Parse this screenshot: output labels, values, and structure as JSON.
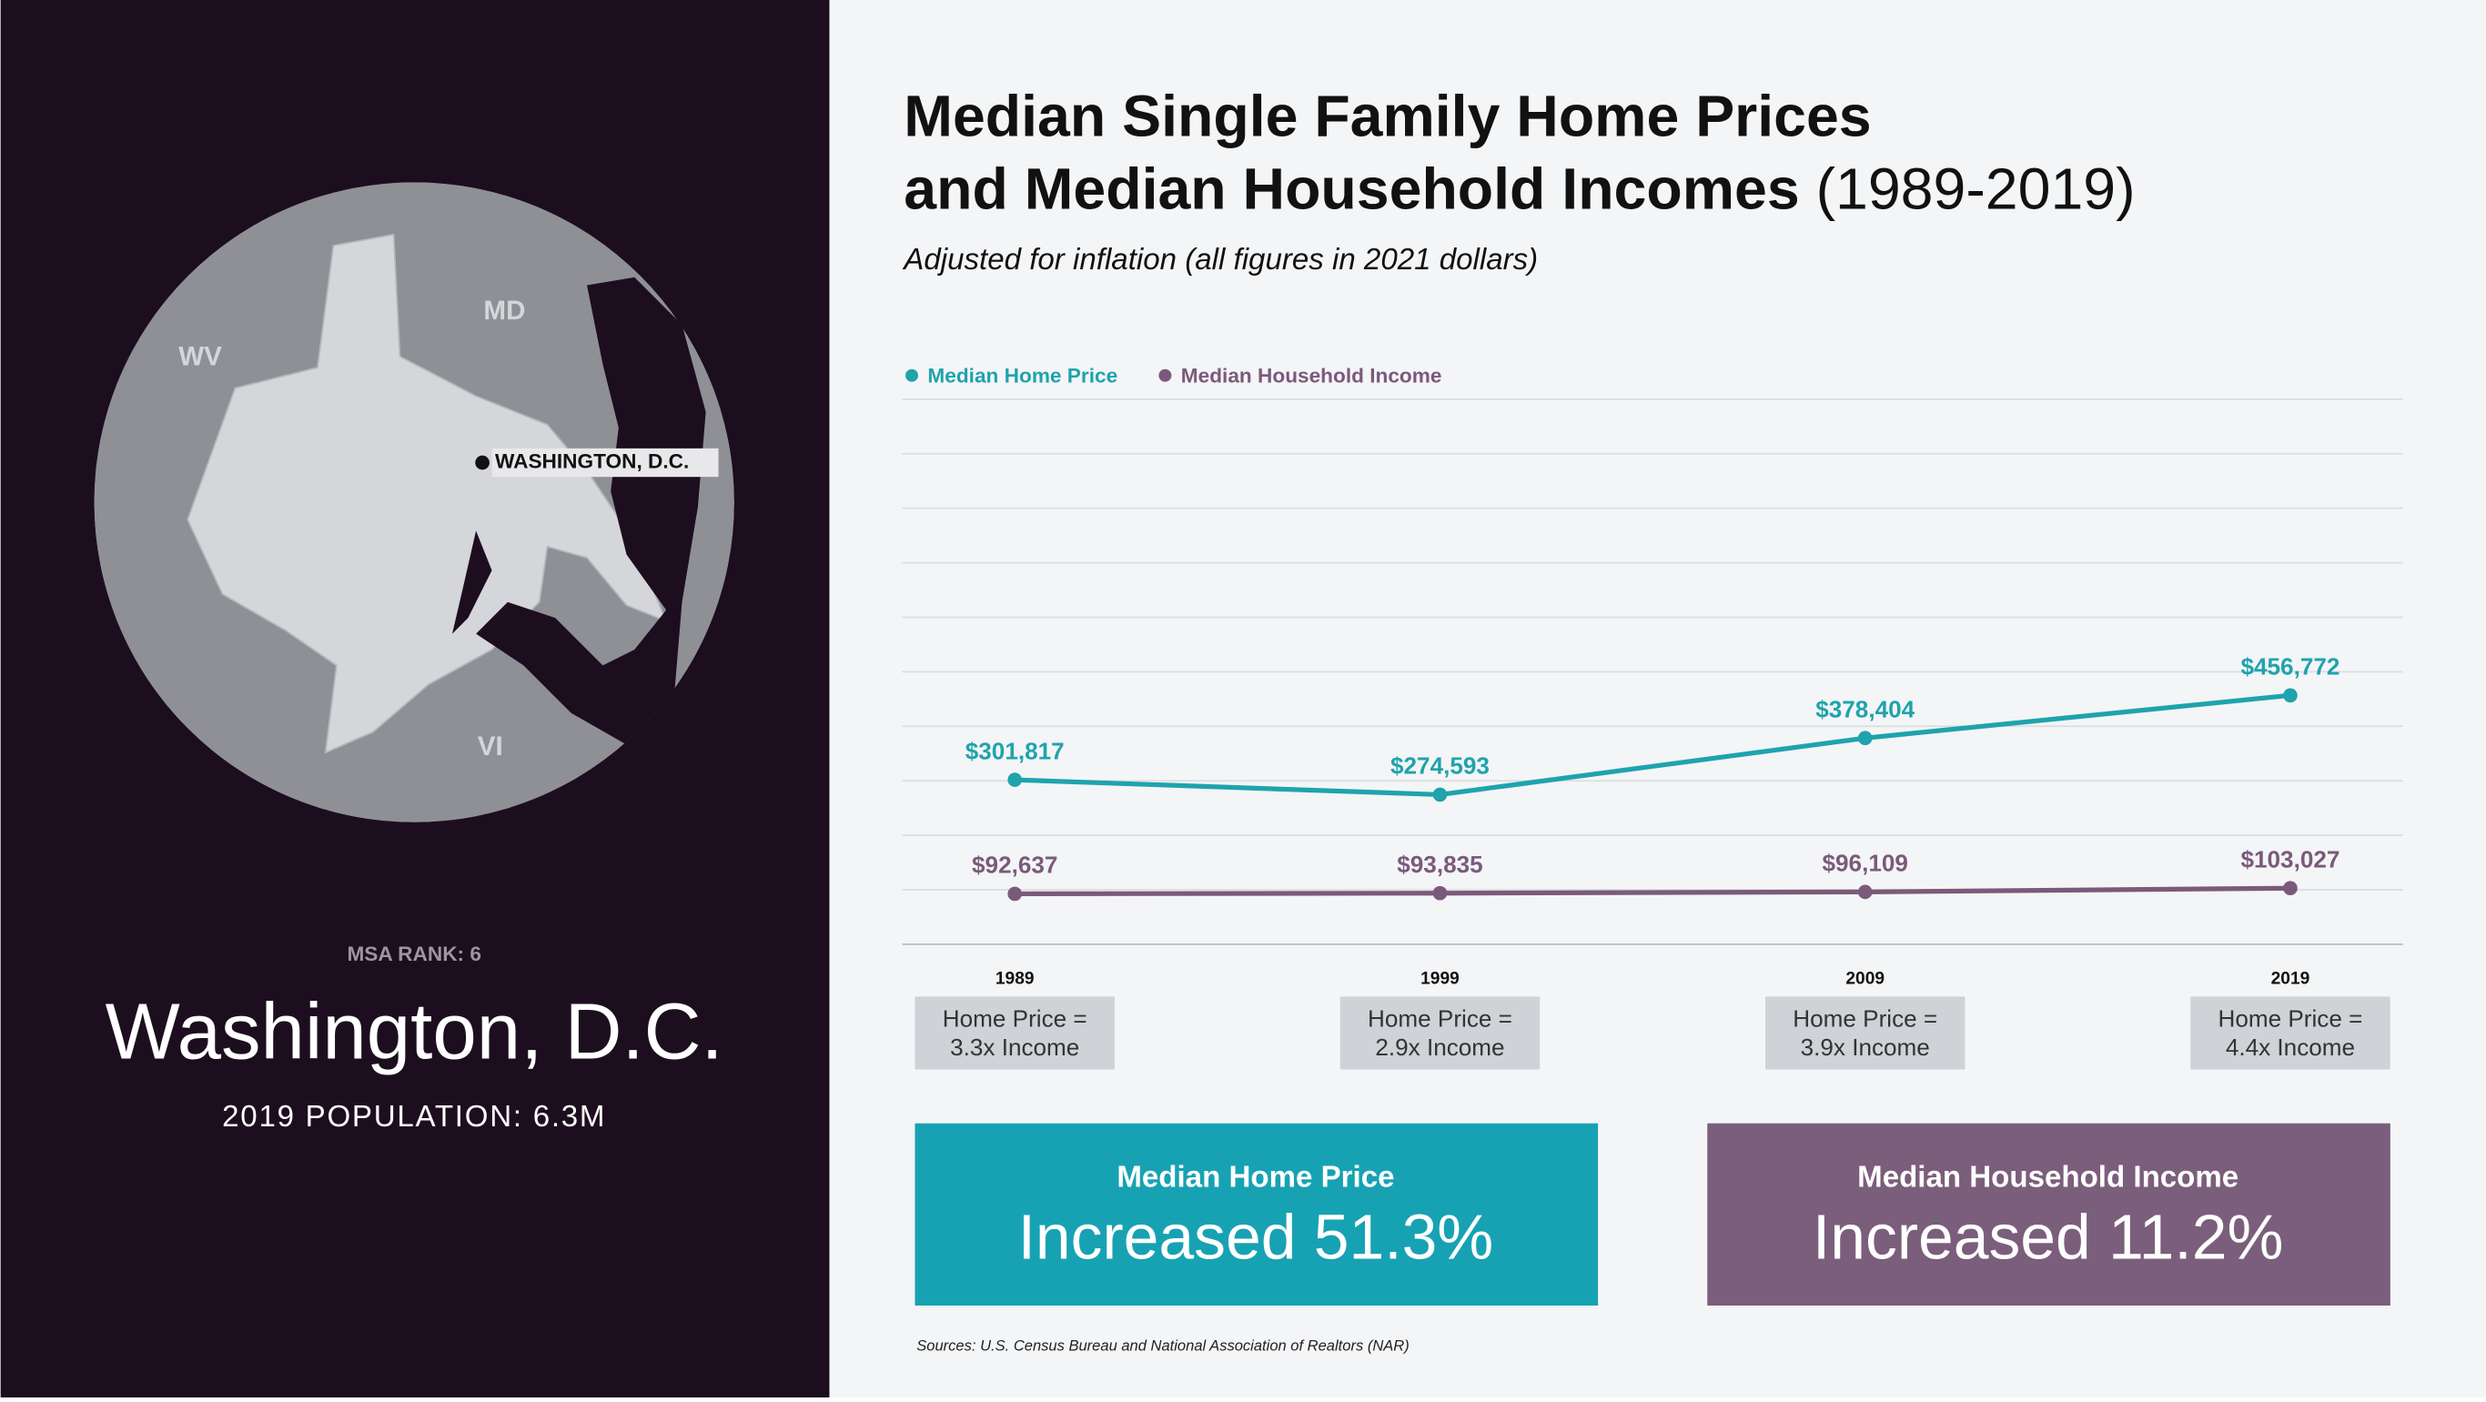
{
  "panel": {
    "map_labels": [
      "WV",
      "MD",
      "VI",
      "WASHINGTON, D.C."
    ],
    "rank": "MSA RANK: 6",
    "city": "Washington, D.C.",
    "population": "2019 POPULATION: 6.3M"
  },
  "chart_data": {
    "type": "line",
    "title_lines": [
      "Median Single Family Home Prices",
      "and Median Household Incomes"
    ],
    "title_suffix": "(1989-2019)",
    "subtitle": "Adjusted for inflation (all figures in 2021 dollars)",
    "categories": [
      "1989",
      "1999",
      "2009",
      "2019"
    ],
    "series": [
      {
        "name": "Median Home Price",
        "color": "#1fa3ad",
        "values": [
          301817,
          274593,
          378404,
          456772
        ],
        "value_labels": [
          "$301,817",
          "$274,593",
          "$378,404",
          "$456,772"
        ]
      },
      {
        "name": "Median Household Income",
        "color": "#7a5a7a",
        "values": [
          92637,
          93835,
          96109,
          103027
        ],
        "value_labels": [
          "$92,637",
          "$93,835",
          "$96,109",
          "$103,027"
        ]
      }
    ],
    "ylim": [
      0,
      1000000
    ],
    "yticks": [
      0,
      100000,
      200000,
      300000,
      400000,
      500000,
      600000,
      700000,
      800000,
      900000,
      1000000
    ],
    "grid": true,
    "legend": "top-left"
  },
  "ratio_boxes": [
    [
      "Home Price =",
      "3.3x Income"
    ],
    [
      "Home Price =",
      "2.9x Income"
    ],
    [
      "Home Price =",
      "3.9x Income"
    ],
    [
      "Home Price =",
      "4.4x Income"
    ]
  ],
  "summary": [
    {
      "heading": "Median Home Price",
      "text": "Increased 51.3%",
      "color": "#17a2b3"
    },
    {
      "heading": "Median Household Income",
      "text": "Increased 11.2%",
      "color": "#7b5e7b"
    }
  ],
  "source": "Sources: U.S. Census Bureau and National Association of Realtors (NAR)"
}
